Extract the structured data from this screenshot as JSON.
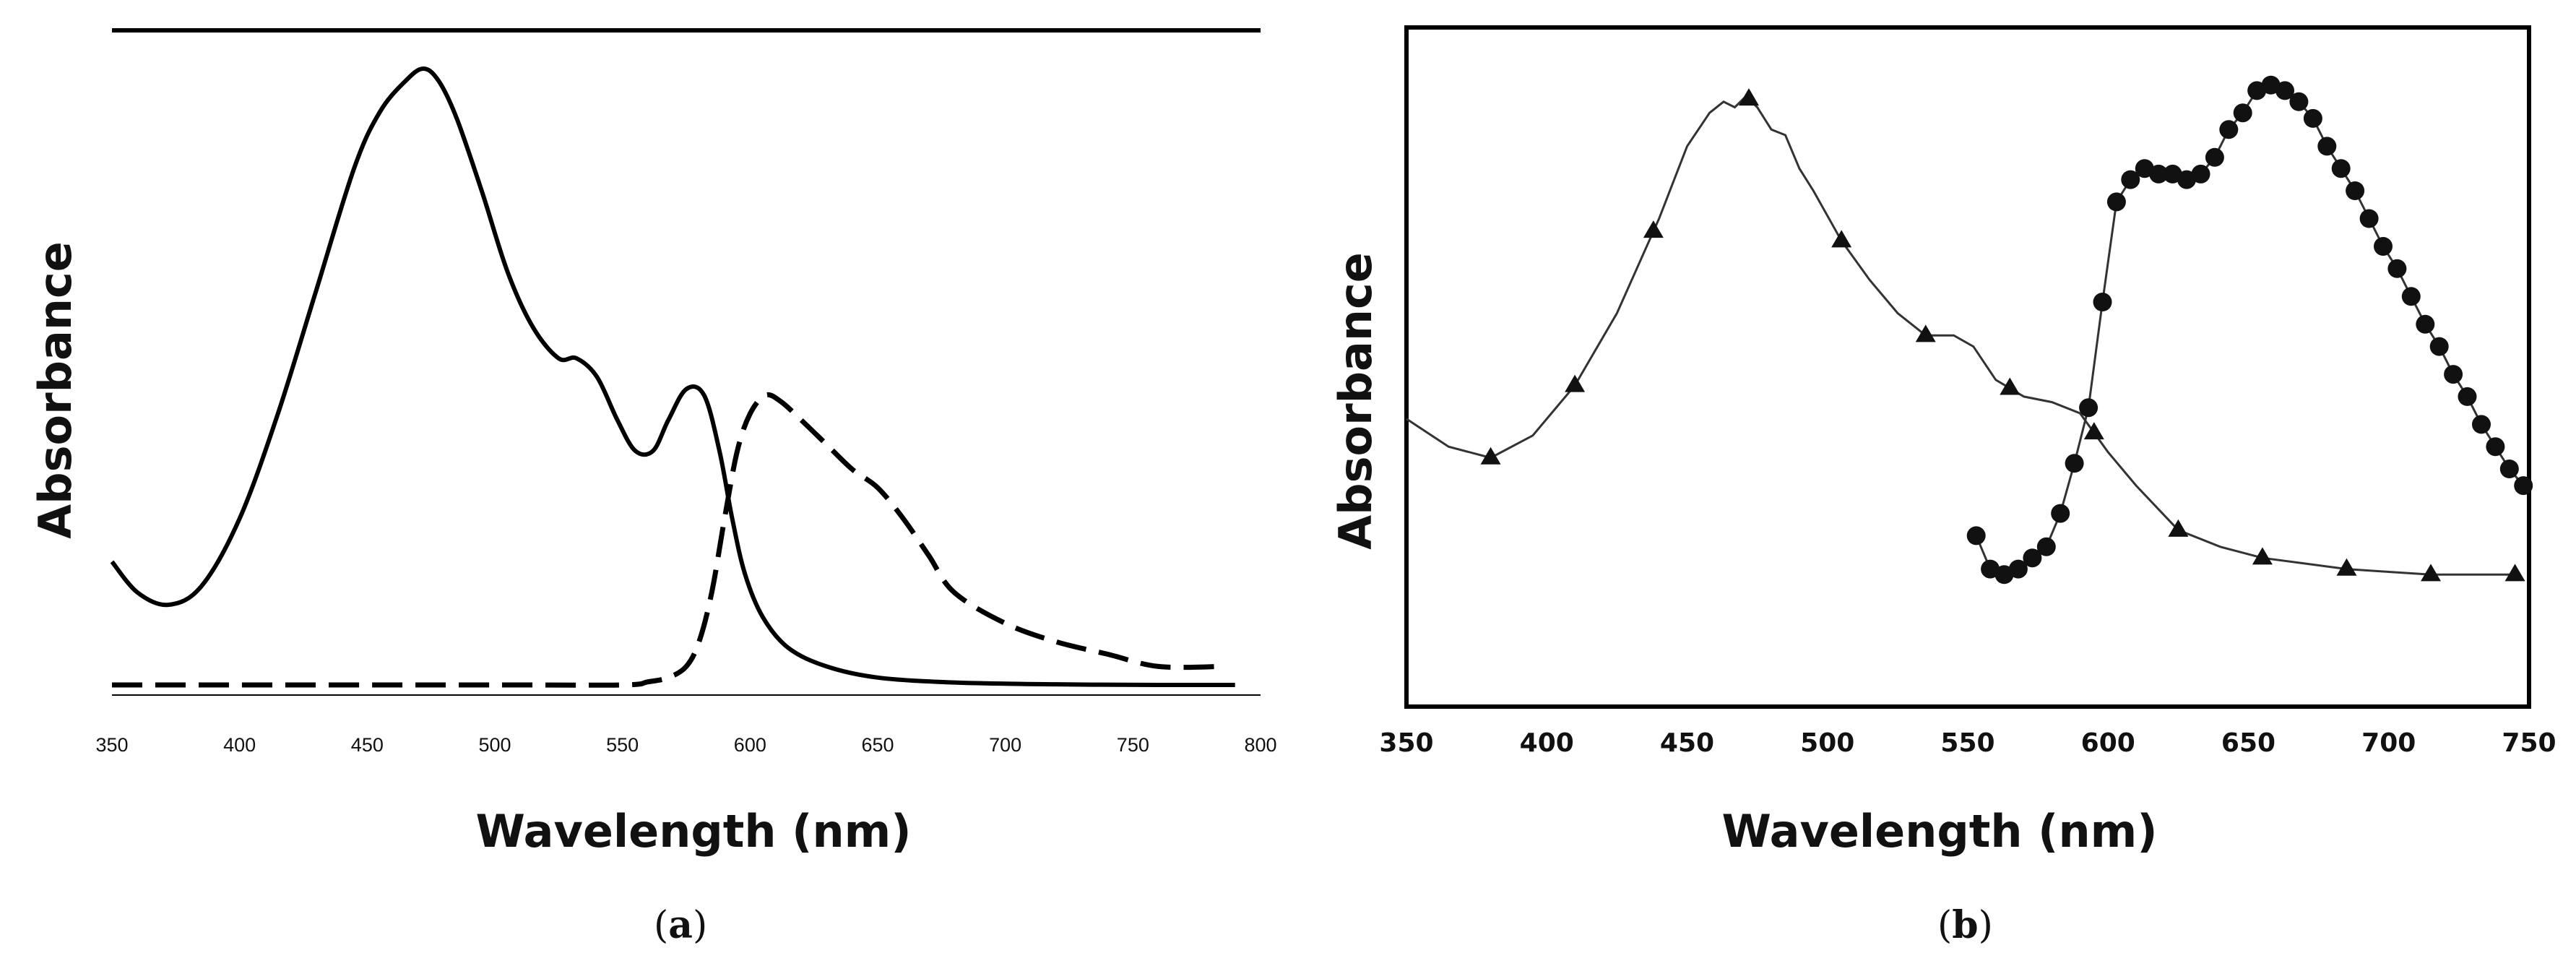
{
  "chart_data": [
    {
      "type": "line",
      "panel": "a",
      "caption_letter": "a",
      "xlabel": "Wavelength (nm)",
      "ylabel": "Absorbance",
      "xlim": [
        350,
        800
      ],
      "ylim": [
        0,
        1
      ],
      "x_ticks": [
        350,
        400,
        450,
        500,
        550,
        600,
        650,
        700,
        750,
        800
      ],
      "grid": false,
      "series": [
        {
          "name": "solid",
          "style": "solid",
          "x": [
            350,
            360,
            372,
            385,
            400,
            415,
            430,
            445,
            455,
            465,
            472,
            478,
            485,
            495,
            505,
            515,
            525,
            532,
            540,
            548,
            555,
            562,
            568,
            575,
            582,
            588,
            593,
            598,
            605,
            615,
            630,
            650,
            680,
            720,
            760,
            790
          ],
          "y": [
            0.2,
            0.15,
            0.13,
            0.16,
            0.27,
            0.44,
            0.64,
            0.84,
            0.93,
            0.98,
            1.0,
            0.98,
            0.92,
            0.8,
            0.67,
            0.58,
            0.53,
            0.53,
            0.5,
            0.43,
            0.38,
            0.38,
            0.43,
            0.48,
            0.47,
            0.38,
            0.27,
            0.18,
            0.11,
            0.06,
            0.03,
            0.012,
            0.004,
            0.001,
            0.0,
            0.0
          ]
        },
        {
          "name": "dashed",
          "style": "dashed",
          "x": [
            350,
            500,
            550,
            560,
            568,
            575,
            580,
            585,
            590,
            595,
            600,
            606,
            612,
            620,
            630,
            640,
            650,
            660,
            670,
            680,
            700,
            720,
            740,
            760,
            785
          ],
          "y": [
            0.0,
            0.0,
            0.0,
            0.005,
            0.012,
            0.03,
            0.07,
            0.15,
            0.27,
            0.38,
            0.44,
            0.47,
            0.46,
            0.43,
            0.39,
            0.35,
            0.32,
            0.27,
            0.21,
            0.15,
            0.1,
            0.07,
            0.05,
            0.03,
            0.03
          ]
        }
      ]
    },
    {
      "type": "line",
      "panel": "b",
      "caption_letter": "b",
      "xlabel": "Wavelength (nm)",
      "ylabel": "Absorbance",
      "xlim": [
        350,
        750
      ],
      "ylim": [
        0,
        1
      ],
      "x_ticks": [
        350,
        400,
        450,
        500,
        550,
        600,
        650,
        700,
        750
      ],
      "grid": false,
      "series": [
        {
          "name": "triangles",
          "marker": "triangle",
          "x": [
            350,
            365,
            380,
            395,
            410,
            425,
            440,
            450,
            458,
            463,
            467,
            471,
            475,
            480,
            485,
            490,
            495,
            505,
            515,
            525,
            535,
            545,
            552,
            560,
            570,
            580,
            590,
            600,
            610,
            625,
            640,
            655,
            670,
            685,
            700,
            715,
            730,
            745
          ],
          "y": [
            0.39,
            0.34,
            0.32,
            0.36,
            0.45,
            0.58,
            0.75,
            0.88,
            0.94,
            0.96,
            0.95,
            0.97,
            0.95,
            0.91,
            0.9,
            0.84,
            0.8,
            0.71,
            0.64,
            0.58,
            0.54,
            0.54,
            0.52,
            0.46,
            0.43,
            0.42,
            0.4,
            0.33,
            0.27,
            0.19,
            0.16,
            0.14,
            0.13,
            0.12,
            0.115,
            0.11,
            0.11,
            0.11
          ],
          "marker_x": [
            380,
            410,
            438,
            472,
            505,
            535,
            565,
            595,
            625,
            655,
            685,
            715,
            745
          ]
        },
        {
          "name": "circles",
          "marker": "circle",
          "x": [
            553,
            558,
            563,
            568,
            573,
            578,
            583,
            588,
            593,
            598,
            603,
            608,
            613,
            618,
            623,
            628,
            633,
            638,
            643,
            648,
            653,
            658,
            663,
            668,
            673,
            678,
            683,
            688,
            693,
            698,
            703,
            708,
            713,
            718,
            723,
            728,
            733,
            738,
            743,
            748
          ],
          "y": [
            0.18,
            0.12,
            0.11,
            0.12,
            0.14,
            0.16,
            0.22,
            0.31,
            0.41,
            0.6,
            0.78,
            0.82,
            0.84,
            0.83,
            0.83,
            0.82,
            0.83,
            0.86,
            0.91,
            0.94,
            0.98,
            0.99,
            0.98,
            0.96,
            0.93,
            0.88,
            0.84,
            0.8,
            0.75,
            0.7,
            0.66,
            0.61,
            0.56,
            0.52,
            0.47,
            0.43,
            0.38,
            0.34,
            0.3,
            0.27
          ]
        }
      ]
    }
  ]
}
